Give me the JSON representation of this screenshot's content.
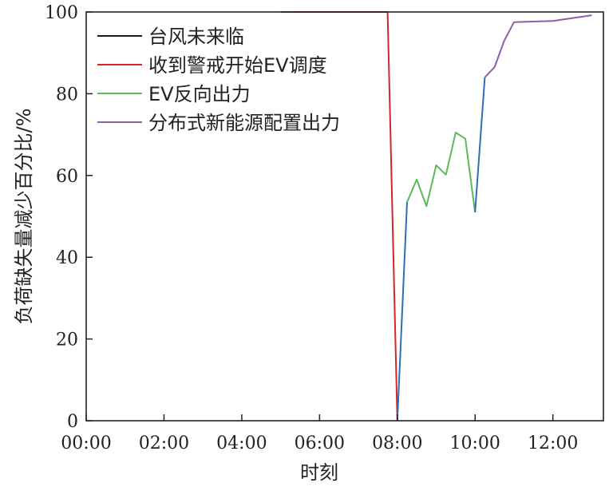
{
  "chart_data": {
    "type": "line",
    "title": "",
    "xlabel": "时刻",
    "ylabel": "负荷缺失量减少百分比/%",
    "xlim": [
      0,
      13.3
    ],
    "ylim": [
      0,
      100
    ],
    "x_ticks": [
      {
        "value": 0,
        "label": "00:00"
      },
      {
        "value": 2,
        "label": "02:00"
      },
      {
        "value": 4,
        "label": "04:00"
      },
      {
        "value": 6,
        "label": "06:00"
      },
      {
        "value": 8,
        "label": "08:00"
      },
      {
        "value": 10,
        "label": "10:00"
      },
      {
        "value": 12,
        "label": "12:00"
      }
    ],
    "y_ticks": [
      0,
      20,
      40,
      60,
      80,
      100
    ],
    "grid": false,
    "legend": {
      "placement": "top-left",
      "entries": [
        {
          "name": "台风未来临",
          "color": "#1a1a1a"
        },
        {
          "name": "收到警戒开始EV调度",
          "color": "#d62728"
        },
        {
          "name": "EV反向出力",
          "color": "#5cb85c"
        },
        {
          "name": "分布式新能源配置出力",
          "color": "#8e5fa8"
        }
      ]
    },
    "series": [
      {
        "color": "#2f6eb3",
        "points": [
          [
            5.0,
            100
          ],
          [
            5.25,
            100
          ]
        ]
      },
      {
        "color": "#d62728",
        "points": [
          [
            5.25,
            100
          ],
          [
            7.75,
            100
          ],
          [
            8.0,
            0
          ]
        ]
      },
      {
        "color": "#2f6eb3",
        "points": [
          [
            8.0,
            0
          ],
          [
            8.25,
            53.5
          ]
        ]
      },
      {
        "color": "#5cb85c",
        "points": [
          [
            8.25,
            53.5
          ],
          [
            8.5,
            59
          ],
          [
            8.75,
            52.5
          ],
          [
            9.0,
            62.5
          ],
          [
            9.25,
            60.2
          ],
          [
            9.5,
            70.5
          ],
          [
            9.75,
            69
          ],
          [
            10.0,
            51
          ]
        ]
      },
      {
        "color": "#2f6eb3",
        "points": [
          [
            10.0,
            51
          ],
          [
            10.25,
            84
          ]
        ]
      },
      {
        "color": "#8e5fa8",
        "points": [
          [
            10.25,
            84
          ],
          [
            10.5,
            86.5
          ],
          [
            10.75,
            93
          ],
          [
            11.0,
            97.5
          ],
          [
            12.0,
            97.8
          ],
          [
            13.0,
            99.2
          ]
        ]
      }
    ]
  }
}
